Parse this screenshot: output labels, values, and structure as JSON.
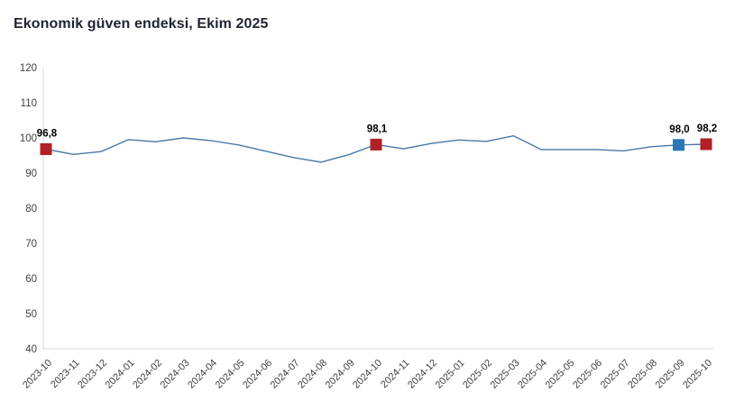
{
  "title": "Ekonomik güven endeksi, Ekim 2025",
  "chart_data": {
    "type": "line",
    "title": "Ekonomik güven endeksi, Ekim 2025",
    "xlabel": "",
    "ylabel": "",
    "ylim": [
      40,
      120
    ],
    "ytick_step": 10,
    "ytick_labels": [
      "120",
      "110",
      "100",
      "90",
      "80",
      "70",
      "60",
      "50",
      "40"
    ],
    "grid": false,
    "legend_position": "none",
    "categories": [
      "2023-10",
      "2023-11",
      "2023-12",
      "2024-01",
      "2024-02",
      "2024-03",
      "2024-04",
      "2024-05",
      "2024-06",
      "2024-07",
      "2024-08",
      "2024-09",
      "2024-10",
      "2024-11",
      "2024-12",
      "2025-01",
      "2025-02",
      "2025-03",
      "2025-04",
      "2025-05",
      "2025-06",
      "2025-07",
      "2025-08",
      "2025-09",
      "2025-10"
    ],
    "values": [
      96.8,
      95.3,
      96.1,
      99.5,
      98.9,
      100.0,
      99.2,
      98.0,
      96.2,
      94.4,
      93.1,
      95.2,
      98.1,
      96.9,
      98.4,
      99.4,
      99.0,
      100.6,
      96.7,
      96.7,
      96.7,
      96.3,
      97.5,
      98.0,
      98.2
    ],
    "marked_points": [
      {
        "category": "2023-10",
        "index": 0,
        "label": "96,8",
        "color": "#b02025"
      },
      {
        "category": "2024-10",
        "index": 12,
        "label": "98,1",
        "color": "#b02025"
      },
      {
        "category": "2025-09",
        "index": 23,
        "label": "98,0",
        "color": "#2e75b6"
      },
      {
        "category": "2025-10",
        "index": 24,
        "label": "98,2",
        "color": "#b02025"
      }
    ],
    "colors": {
      "line": "#4878a8",
      "axis": "#d9d9d9",
      "tick_text": "#404040",
      "point_label_text": "#000000",
      "title_text": "#1f2430",
      "background": "#ffffff"
    }
  }
}
